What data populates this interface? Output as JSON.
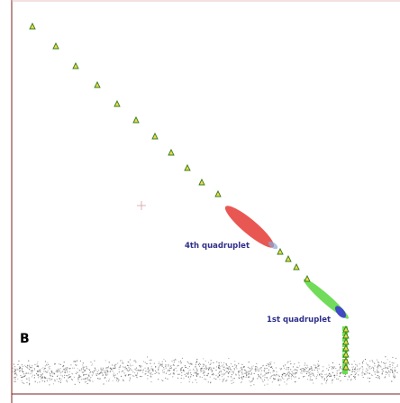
{
  "panel": {
    "letter": "B"
  },
  "colors": {
    "triangle_main": "#2e7d1a",
    "triangle_fill": "#f5d64a",
    "quadruplet_4th": "#e53935",
    "quadruplet_1st_green": "#57d63c",
    "quadruplet_1st_blue": "#3a3acf",
    "noise": "#555555",
    "axis": "#7a2020"
  },
  "chart_data": {
    "type": "scatter",
    "title": "",
    "xlabel": "",
    "ylabel": "",
    "grid": false,
    "series": [
      {
        "marker": "triangle",
        "points": [
          [
            36,
            29
          ],
          [
            62,
            51
          ],
          [
            84,
            73
          ],
          [
            108,
            94
          ],
          [
            130,
            115
          ],
          [
            151,
            133
          ],
          [
            172,
            151
          ],
          [
            190,
            169
          ],
          [
            208,
            186
          ],
          [
            224,
            202
          ],
          [
            242,
            215
          ],
          [
            311,
            279
          ],
          [
            320,
            287
          ],
          [
            329,
            296
          ],
          [
            341,
            309
          ],
          [
            384,
            365
          ],
          [
            384,
            372
          ],
          [
            384,
            379
          ],
          [
            384,
            386
          ],
          [
            384,
            393
          ],
          [
            384,
            400
          ],
          [
            384,
            407
          ]
        ]
      }
    ],
    "clusters": [
      {
        "name": "4th quadruplet",
        "color": "#e53935",
        "from": [
          255,
          233
        ],
        "to": [
          299,
          270
        ]
      },
      {
        "name": "1st quadruplet",
        "color": "#57d63c",
        "from": [
          341,
          313
        ],
        "to": [
          383,
          350
        ]
      }
    ],
    "annotations": [
      {
        "text": "4th quadruplet"
      },
      {
        "text": "1st quadruplet"
      }
    ]
  }
}
